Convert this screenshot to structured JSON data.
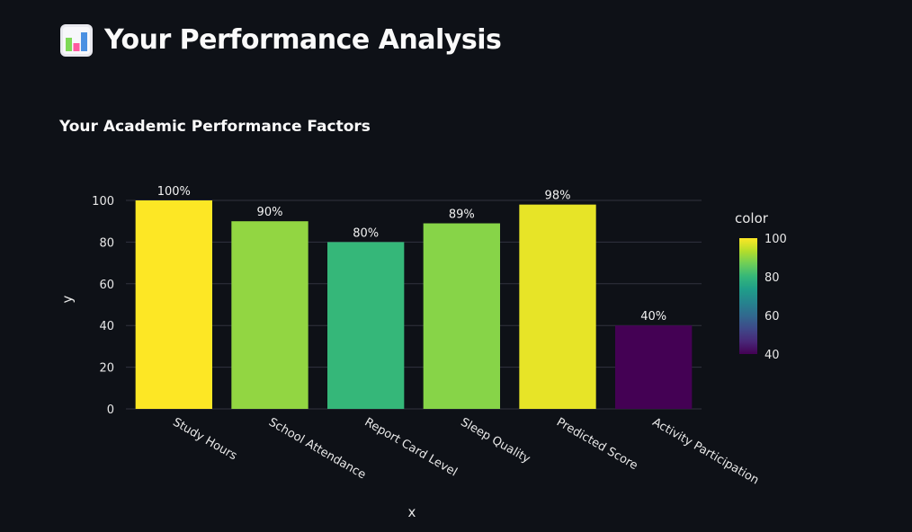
{
  "header": {
    "title": "Your Performance Analysis",
    "icon": "bar-chart-emoji-icon"
  },
  "section": {
    "title": "Your Academic Performance Factors"
  },
  "colors": {
    "background": "#0e1117",
    "text": "#fafafa",
    "colorscale": "viridis"
  },
  "chart_data": {
    "type": "bar",
    "categories": [
      "Study Hours",
      "School Attendance",
      "Report Card Level",
      "Sleep Quality",
      "Predicted Score",
      "Activity Participation"
    ],
    "values": [
      100,
      90,
      80,
      89,
      98,
      40
    ],
    "text_labels": [
      "100%",
      "90%",
      "80%",
      "89%",
      "98%",
      "40%"
    ],
    "xlabel": "x",
    "ylabel": "y",
    "ylim": [
      0,
      100
    ],
    "yticks": [
      0,
      20,
      40,
      60,
      80,
      100
    ],
    "grid": true,
    "colorbar": {
      "title": "color",
      "range": [
        40,
        100
      ],
      "ticks": [
        40,
        60,
        80,
        100
      ]
    }
  }
}
